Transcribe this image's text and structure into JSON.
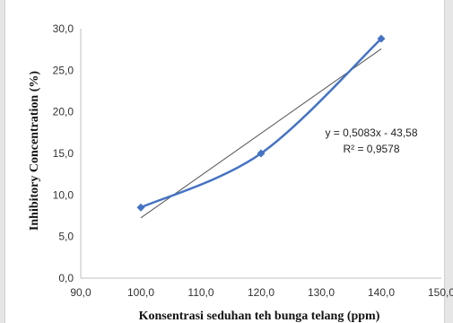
{
  "chart_data": {
    "type": "scatter",
    "title": "",
    "xlabel": "Konsentrasi seduhan teh bunga telang (ppm)",
    "ylabel": "Inhibitory Concentration (%)",
    "xlim": [
      90,
      150
    ],
    "ylim": [
      0,
      30
    ],
    "x_ticks": [
      "90,0",
      "100,0",
      "110,0",
      "120,0",
      "130,0",
      "140,0",
      "150,0"
    ],
    "y_ticks": [
      "0,0",
      "5,0",
      "10,0",
      "15,0",
      "20,0",
      "25,0",
      "30,0"
    ],
    "grid": false,
    "legend": "none",
    "series": [
      {
        "x": [
          100,
          120,
          140
        ],
        "y": [
          8.5,
          15.0,
          28.8
        ],
        "marker": "diamond",
        "line": "smooth",
        "color": "#4472c4"
      }
    ],
    "trendline": {
      "type": "linear",
      "slope": 0.5083,
      "intercept": -43.58,
      "color": "#555555"
    },
    "annotations": {
      "equation": "y = 0,5083x - 43,58",
      "r_squared": "R² = 0,9578"
    }
  }
}
